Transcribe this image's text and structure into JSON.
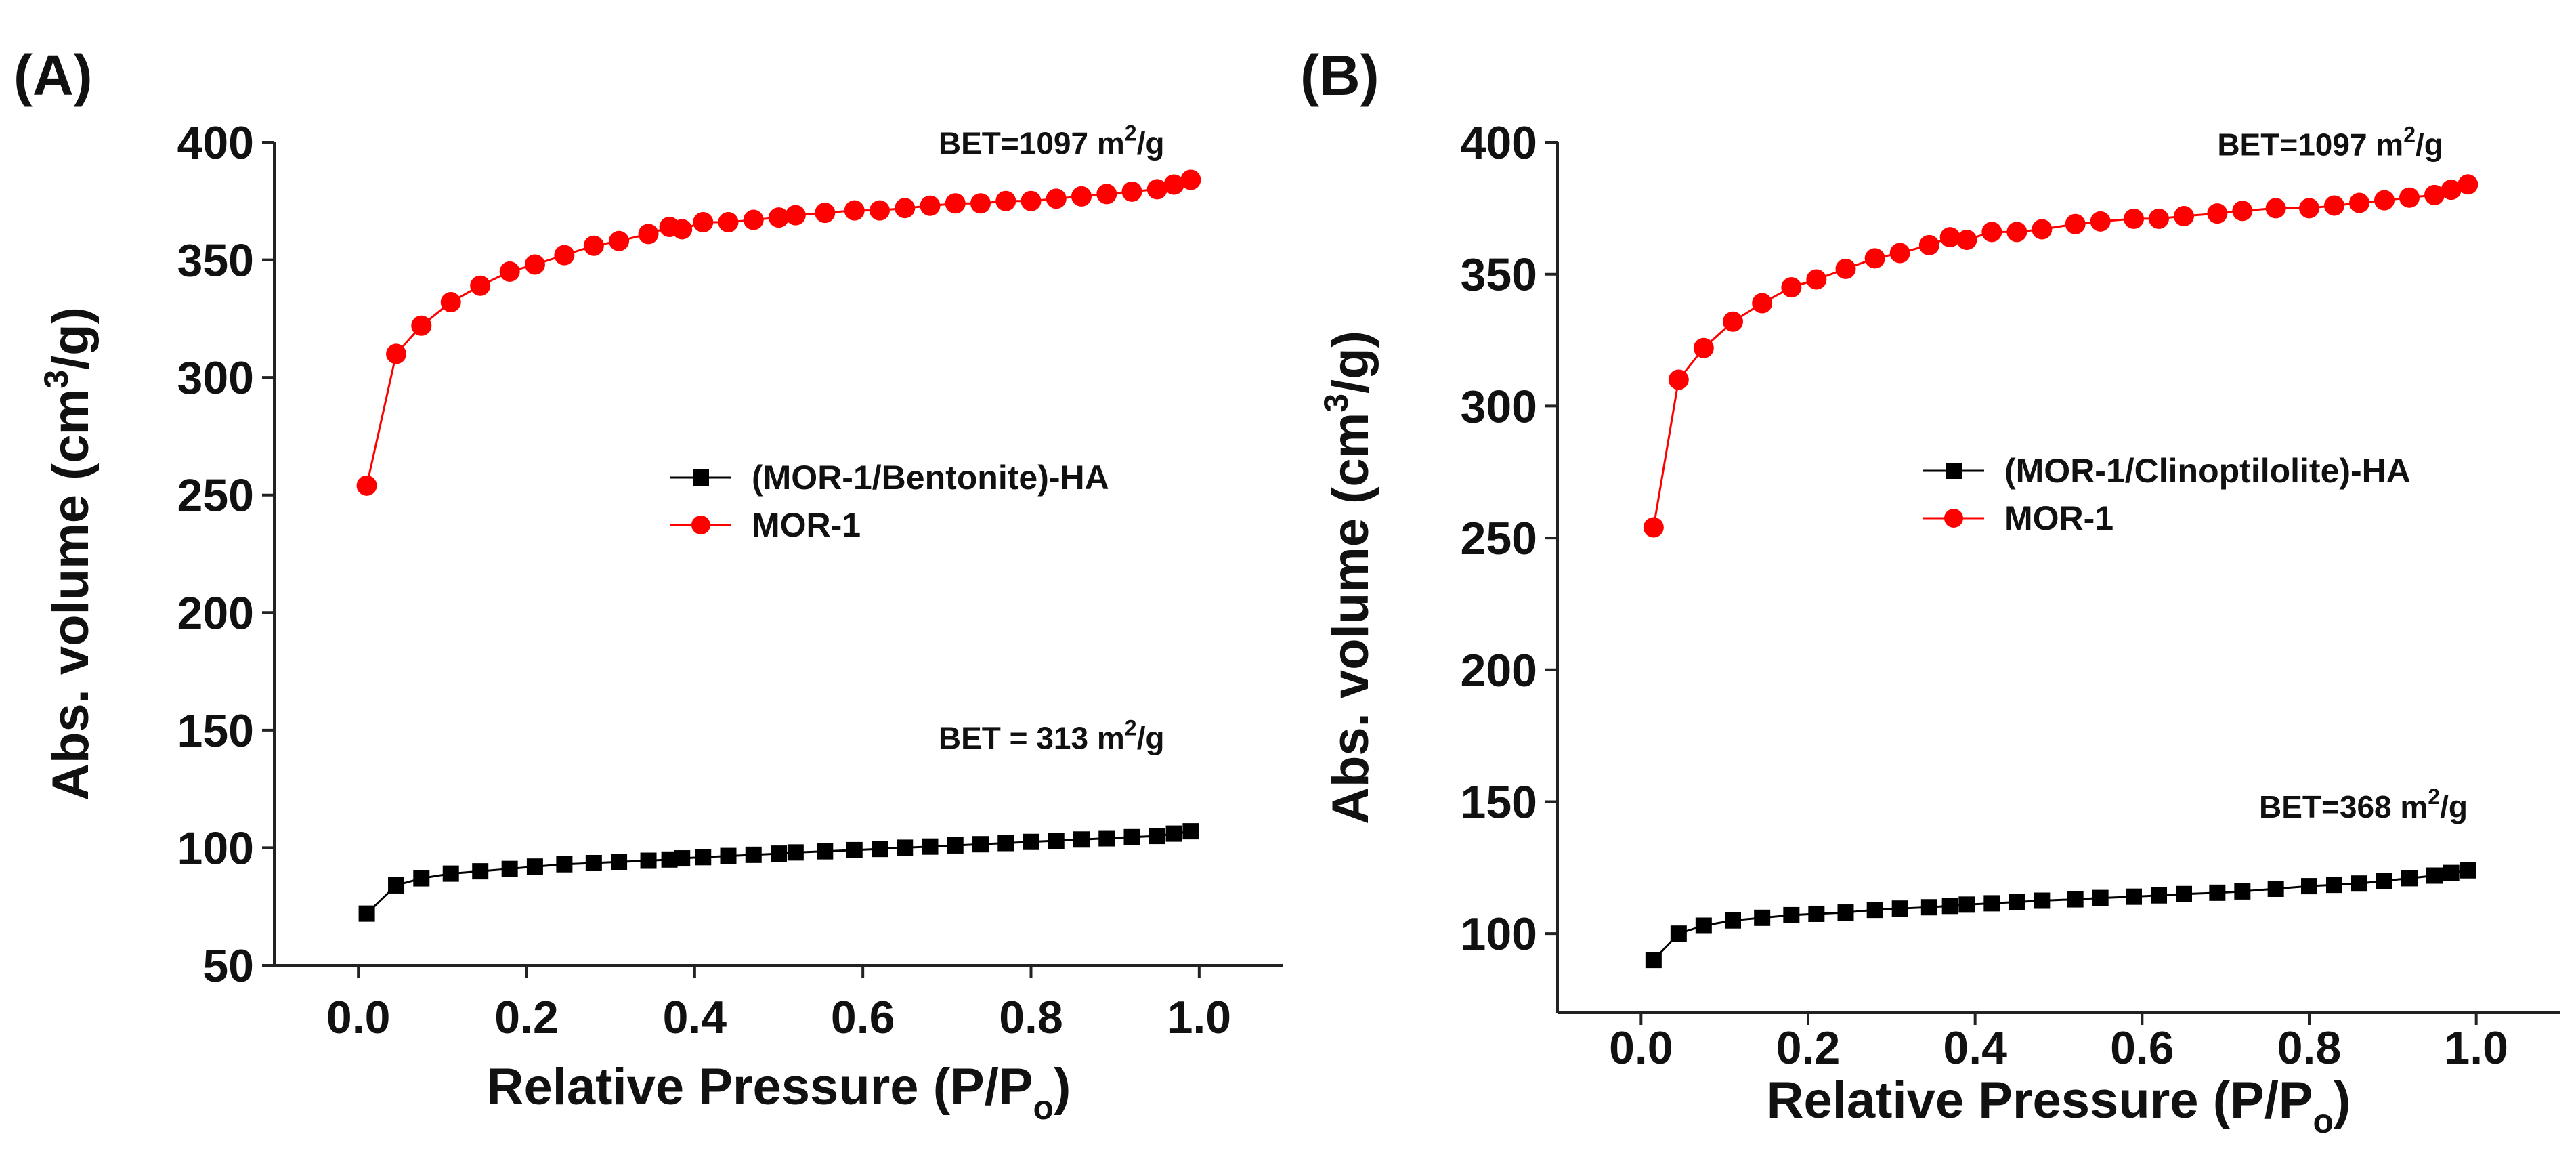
{
  "chart_data": [
    {
      "type": "scatter",
      "panel": "(A)",
      "xlabel": "Relative Pressure (P/P",
      "xlabel_sub": "o",
      "xlabel_end": ")",
      "ylabel": "Abs. volume (cm",
      "ylabel_sup": "3",
      "ylabel_end": "/g)",
      "xlim": [
        -0.1,
        1.1
      ],
      "ylim": [
        50,
        400
      ],
      "xticks": [
        "0.0",
        "0.2",
        "0.4",
        "0.6",
        "0.8",
        "1.0"
      ],
      "yticks": [
        "50",
        "100",
        "150",
        "200",
        "250",
        "300",
        "350",
        "400"
      ],
      "series": [
        {
          "name": "(MOR-1/Bentonite)-HA",
          "color": "#000000",
          "marker": "square",
          "x": [
            0.01,
            0.045,
            0.075,
            0.11,
            0.145,
            0.18,
            0.21,
            0.245,
            0.28,
            0.31,
            0.345,
            0.37,
            0.385,
            0.41,
            0.44,
            0.47,
            0.5,
            0.52,
            0.555,
            0.59,
            0.62,
            0.65,
            0.68,
            0.71,
            0.74,
            0.77,
            0.8,
            0.83,
            0.86,
            0.89,
            0.92,
            0.95,
            0.97,
            0.99
          ],
          "y": [
            72,
            84,
            87,
            89,
            90,
            91,
            92,
            93,
            93.5,
            94,
            94.5,
            95,
            95.5,
            96,
            96.5,
            97,
            97.5,
            98,
            98.5,
            99,
            99.5,
            100,
            100.5,
            101,
            101.5,
            102,
            102.5,
            103,
            103.5,
            104,
            104.5,
            105,
            106,
            107
          ]
        },
        {
          "name": "MOR-1",
          "color": "#ff0000",
          "marker": "circle",
          "x": [
            0.01,
            0.045,
            0.075,
            0.11,
            0.145,
            0.18,
            0.21,
            0.245,
            0.28,
            0.31,
            0.345,
            0.37,
            0.385,
            0.41,
            0.44,
            0.47,
            0.5,
            0.52,
            0.555,
            0.59,
            0.62,
            0.65,
            0.68,
            0.71,
            0.74,
            0.77,
            0.8,
            0.83,
            0.86,
            0.89,
            0.92,
            0.95,
            0.97,
            0.99
          ],
          "y": [
            254,
            310,
            322,
            332,
            339,
            345,
            348,
            352,
            356,
            358,
            361,
            364,
            363,
            366,
            366,
            367,
            368,
            369,
            370,
            371,
            371,
            372,
            373,
            374,
            374,
            375,
            375,
            376,
            377,
            378,
            379,
            380,
            382,
            384
          ]
        }
      ],
      "annotations": [
        {
          "text": "BET=1097 m",
          "sup": "2",
          "end": "/g",
          "x": 0.69,
          "y": 395
        },
        {
          "text": "BET = 313 m",
          "sup": "2",
          "end": "/g",
          "x": 0.69,
          "y": 142
        }
      ]
    },
    {
      "type": "scatter",
      "panel": "(B)",
      "xlabel": "Relative Pressure (P/P",
      "xlabel_sub": "o",
      "xlabel_end": ")",
      "ylabel": "Abs. volume (cm",
      "ylabel_sup": "3",
      "ylabel_end": "/g)",
      "xlim": [
        -0.1,
        1.1
      ],
      "ylim": [
        70,
        400
      ],
      "xticks": [
        "0.0",
        "0.2",
        "0.4",
        "0.6",
        "0.8",
        "1.0"
      ],
      "yticks": [
        "100",
        "150",
        "200",
        "250",
        "300",
        "350",
        "400"
      ],
      "series": [
        {
          "name": "(MOR-1/Clinoptilolite)-HA",
          "color": "#000000",
          "marker": "square",
          "x": [
            0.015,
            0.045,
            0.075,
            0.11,
            0.145,
            0.18,
            0.21,
            0.245,
            0.28,
            0.31,
            0.345,
            0.37,
            0.39,
            0.42,
            0.45,
            0.48,
            0.52,
            0.55,
            0.59,
            0.62,
            0.65,
            0.69,
            0.72,
            0.76,
            0.8,
            0.83,
            0.86,
            0.89,
            0.92,
            0.95,
            0.97,
            0.99
          ],
          "y": [
            90,
            100,
            103,
            105,
            106,
            107,
            107.5,
            108,
            109,
            109.5,
            110,
            110.5,
            111,
            111.5,
            112,
            112.5,
            113,
            113.5,
            114,
            114.5,
            115,
            115.5,
            116,
            117,
            118,
            118.5,
            119,
            120,
            121,
            122,
            123,
            124
          ]
        },
        {
          "name": "MOR-1",
          "color": "#ff0000",
          "marker": "circle",
          "x": [
            0.015,
            0.045,
            0.075,
            0.11,
            0.145,
            0.18,
            0.21,
            0.245,
            0.28,
            0.31,
            0.345,
            0.37,
            0.39,
            0.42,
            0.45,
            0.48,
            0.52,
            0.55,
            0.59,
            0.62,
            0.65,
            0.69,
            0.72,
            0.76,
            0.8,
            0.83,
            0.86,
            0.89,
            0.92,
            0.95,
            0.97,
            0.99
          ],
          "y": [
            254,
            310,
            322,
            332,
            339,
            345,
            348,
            352,
            356,
            358,
            361,
            364,
            363,
            366,
            366,
            367,
            369,
            370,
            371,
            371,
            372,
            373,
            374,
            375,
            375,
            376,
            377,
            378,
            379,
            380,
            382,
            384
          ]
        }
      ],
      "annotations": [
        {
          "text": "BET=1097 m",
          "sup": "2",
          "end": "/g",
          "x": 0.69,
          "y": 395
        },
        {
          "text": "BET=368 m",
          "sup": "2",
          "end": "/g",
          "x": 0.74,
          "y": 144
        }
      ]
    }
  ]
}
